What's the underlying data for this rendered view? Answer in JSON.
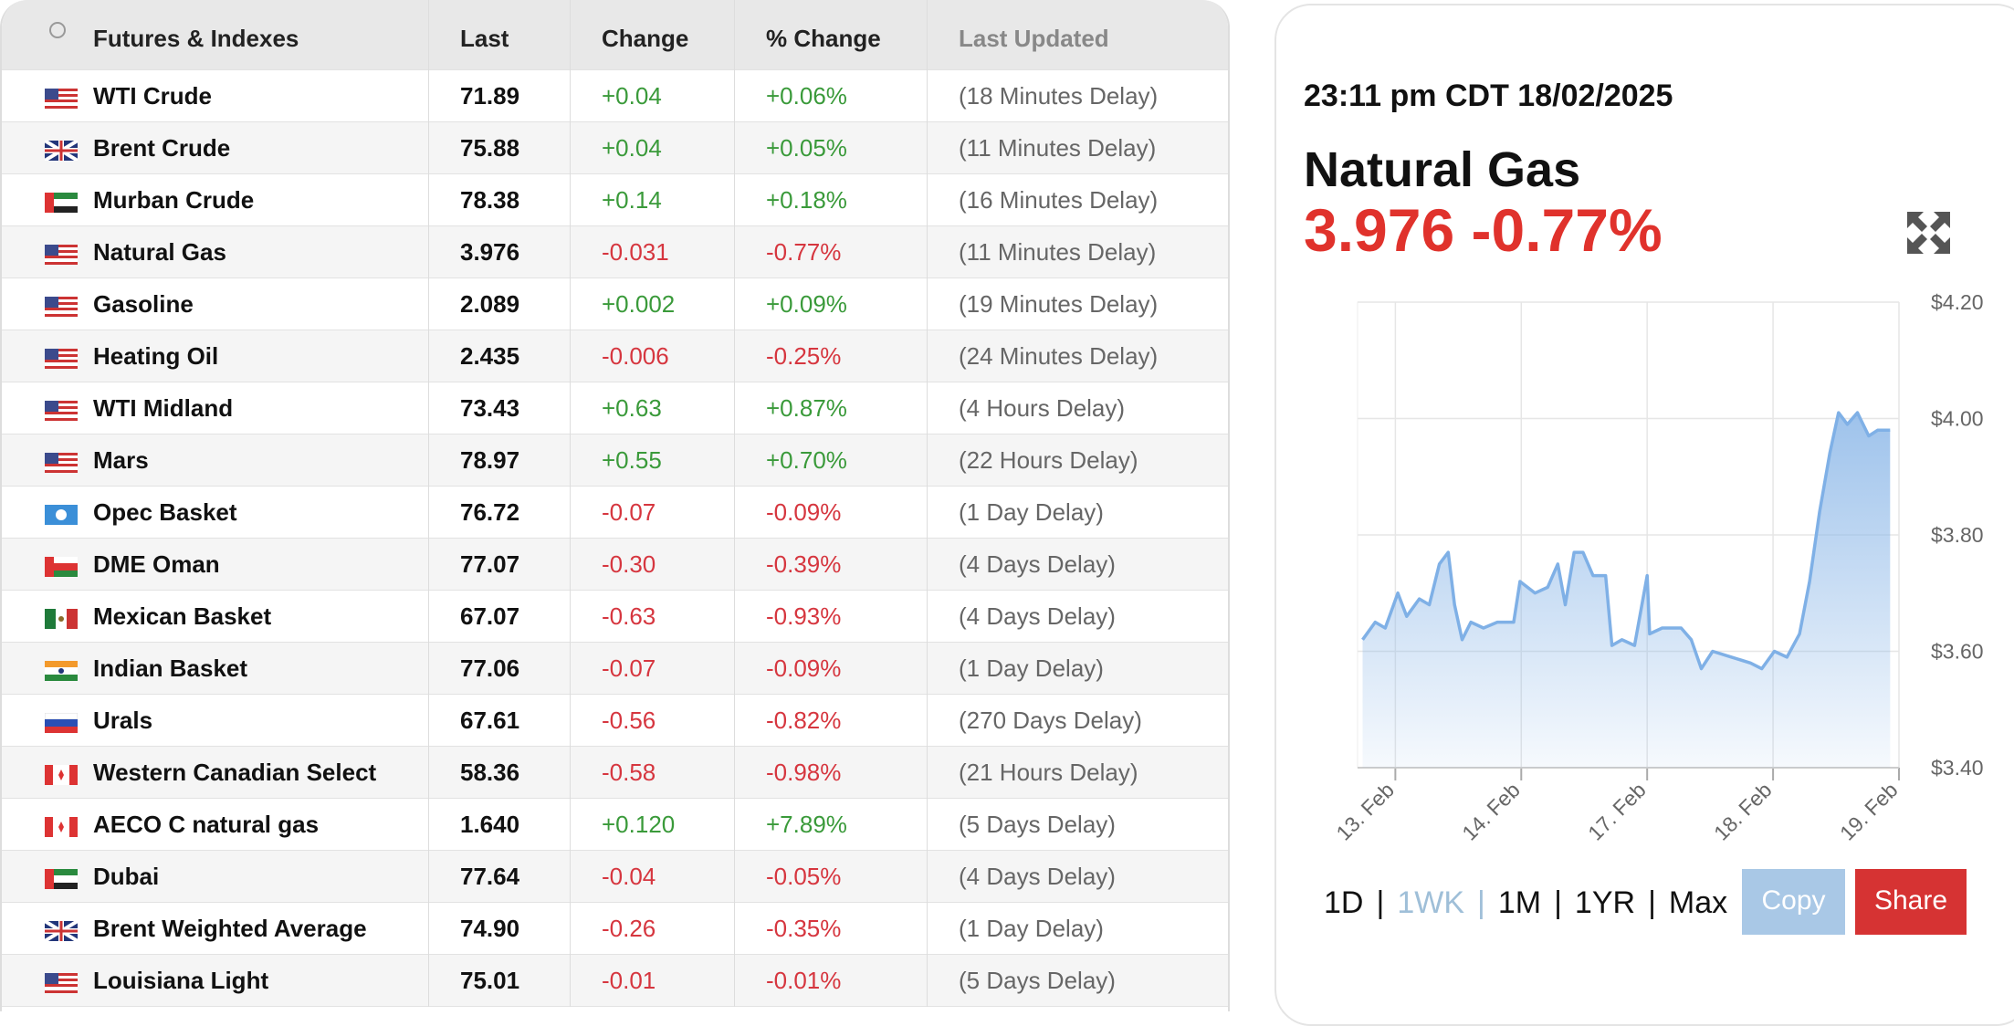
{
  "table": {
    "header": [
      "Futures & Indexes",
      "Last",
      "Change",
      "% Change",
      "Last Updated"
    ],
    "rows": [
      [
        "WTI Crude",
        "71.89",
        "+0.04",
        "+0.06%",
        "(18 Minutes Delay)"
      ],
      [
        "Brent Crude",
        "75.88",
        "+0.04",
        "+0.05%",
        "(11 Minutes Delay)"
      ],
      [
        "Murban Crude",
        "78.38",
        "+0.14",
        "+0.18%",
        "(16 Minutes Delay)"
      ],
      [
        "Natural Gas",
        "3.976",
        "-0.031",
        "-0.77%",
        "(11 Minutes Delay)"
      ],
      [
        "Gasoline",
        "2.089",
        "+0.002",
        "+0.09%",
        "(19 Minutes Delay)"
      ],
      [
        "Heating Oil",
        "2.435",
        "-0.006",
        "-0.25%",
        "(24 Minutes Delay)"
      ],
      [
        "WTI Midland",
        "73.43",
        "+0.63",
        "+0.87%",
        "(4 Hours Delay)"
      ],
      [
        "Mars",
        "78.97",
        "+0.55",
        "+0.70%",
        "(22 Hours Delay)"
      ],
      [
        "Opec Basket",
        "76.72",
        "-0.07",
        "-0.09%",
        "(1 Day Delay)"
      ],
      [
        "DME Oman",
        "77.07",
        "-0.30",
        "-0.39%",
        "(4 Days Delay)"
      ],
      [
        "Mexican Basket",
        "67.07",
        "-0.63",
        "-0.93%",
        "(4 Days Delay)"
      ],
      [
        "Indian Basket",
        "77.06",
        "-0.07",
        "-0.09%",
        "(1 Day Delay)"
      ],
      [
        "Urals",
        "67.61",
        "-0.56",
        "-0.82%",
        "(270 Days Delay)"
      ],
      [
        "Western Canadian Select",
        "58.36",
        "-0.58",
        "-0.98%",
        "(21 Hours Delay)"
      ],
      [
        "AECO C natural gas",
        "1.640",
        "+0.120",
        "+7.89%",
        "(5 Days Delay)"
      ],
      [
        "Dubai",
        "77.64",
        "-0.04",
        "-0.05%",
        "(4 Days Delay)"
      ],
      [
        "Brent Weighted Average",
        "74.90",
        "-0.26",
        "-0.35%",
        "(1 Day Delay)"
      ],
      [
        "Louisiana Light",
        "75.01",
        "-0.01",
        "-0.01%",
        "(5 Days Delay)"
      ]
    ]
  },
  "panel": {
    "timestamp": "23:11 pm CDT 18/02/2025",
    "name": "Natural Gas",
    "price": "3.976",
    "change": "-0.77%",
    "ranges": [
      "1D",
      "1WK",
      "1M",
      "1YR",
      "Max"
    ],
    "active_range": 1,
    "separator": "|",
    "copy": "Copy",
    "share": "Share"
  },
  "chart_data": {
    "type": "line",
    "x": [
      -0.26,
      -0.16,
      -0.08,
      0.02,
      0.09,
      0.19,
      0.27,
      0.35,
      0.42,
      0.47,
      0.53,
      0.6,
      0.7,
      0.81,
      0.94,
      0.99,
      1.11,
      1.21,
      1.29,
      1.35,
      1.42,
      1.49,
      1.57,
      1.67,
      1.72,
      1.8,
      1.9,
      2.0,
      2.02,
      2.12,
      2.27,
      2.35,
      2.43,
      2.52,
      2.67,
      2.82,
      2.91,
      3.01,
      3.11,
      3.21,
      3.29,
      3.37,
      3.45,
      3.52,
      3.59,
      3.67,
      3.76,
      3.83,
      3.93
    ],
    "series": [
      {
        "name": "Natural Gas",
        "color": "#7fb0e6",
        "values": [
          3.62,
          3.65,
          3.64,
          3.7,
          3.66,
          3.69,
          3.68,
          3.75,
          3.77,
          3.68,
          3.62,
          3.65,
          3.64,
          3.65,
          3.65,
          3.72,
          3.7,
          3.71,
          3.75,
          3.68,
          3.77,
          3.77,
          3.73,
          3.73,
          3.61,
          3.62,
          3.61,
          3.73,
          3.63,
          3.64,
          3.64,
          3.62,
          3.57,
          3.6,
          3.59,
          3.58,
          3.57,
          3.6,
          3.59,
          3.63,
          3.72,
          3.84,
          3.94,
          4.01,
          3.99,
          4.01,
          3.97,
          3.98,
          3.98
        ]
      }
    ],
    "xlim": [
      -0.3,
      4.0
    ],
    "xticks": [
      {
        "value": 0,
        "label": "13. Feb"
      },
      {
        "value": 1,
        "label": "14. Feb"
      },
      {
        "value": 2,
        "label": "17. Feb"
      },
      {
        "value": 3,
        "label": "18. Feb"
      },
      {
        "value": 4,
        "label": "19. Feb"
      }
    ],
    "ylim": [
      3.4,
      4.2
    ],
    "yticks": [
      {
        "value": 3.4,
        "label": "$3.40"
      },
      {
        "value": 3.6,
        "label": "$3.60"
      },
      {
        "value": 3.8,
        "label": "$3.80"
      },
      {
        "value": 4.0,
        "label": "$4.00"
      },
      {
        "value": 4.2,
        "label": "$4.20"
      }
    ],
    "grid": true
  }
}
